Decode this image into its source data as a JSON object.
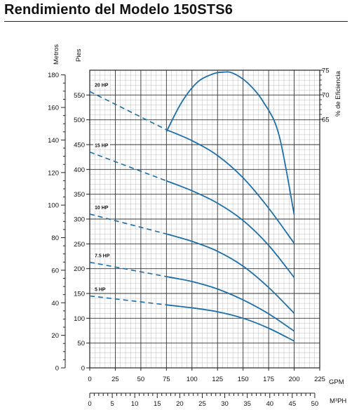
{
  "page_title": "Rendimiento del Modelo 150STS6",
  "chart_data": {
    "type": "line",
    "title": "Rendimiento del Modelo 150STS6",
    "x_label_gpm": "GPM",
    "x_label_m3ph": "M³PH",
    "y_label_metros": "Metros",
    "y_label_pies": "Pies",
    "y_label_eff": "% de Eficiencia",
    "gpm_ticks": [
      "0",
      "25",
      "50",
      "75",
      "100",
      "125",
      "150",
      "175",
      "200",
      "225"
    ],
    "m3ph_ticks": [
      "0",
      "5",
      "10",
      "15",
      "20",
      "25",
      "30",
      "35",
      "40",
      "45",
      "50"
    ],
    "metros_ticks": [
      "0",
      "20",
      "40",
      "60",
      "80",
      "100",
      "120",
      "140",
      "160",
      "180"
    ],
    "pies_ticks": [
      "0",
      "50",
      "100",
      "150",
      "200",
      "250",
      "300",
      "350",
      "400",
      "450",
      "500",
      "550"
    ],
    "eff_ticks": [
      "65",
      "70",
      "75"
    ],
    "xlim_gpm": [
      0,
      225
    ],
    "ylim_feet": [
      0,
      600
    ],
    "eff_range": [
      65,
      75
    ],
    "grid": true,
    "series": [
      {
        "name": "20 HP",
        "dashed": [
          [
            0,
            557
          ],
          [
            75,
            480
          ]
        ],
        "solid": [
          [
            75,
            480
          ],
          [
            100,
            458
          ],
          [
            125,
            428
          ],
          [
            150,
            383
          ],
          [
            175,
            322
          ],
          [
            200,
            251
          ]
        ]
      },
      {
        "name": "15 HP",
        "dashed": [
          [
            0,
            435
          ],
          [
            75,
            377
          ]
        ],
        "solid": [
          [
            75,
            377
          ],
          [
            100,
            357
          ],
          [
            125,
            332
          ],
          [
            150,
            297
          ],
          [
            175,
            247
          ],
          [
            200,
            182
          ]
        ]
      },
      {
        "name": "10 HP",
        "dashed": [
          [
            0,
            310
          ],
          [
            75,
            270
          ]
        ],
        "solid": [
          [
            75,
            270
          ],
          [
            100,
            255
          ],
          [
            125,
            235
          ],
          [
            150,
            205
          ],
          [
            175,
            162
          ],
          [
            200,
            110
          ]
        ]
      },
      {
        "name": "7.5 HP",
        "dashed": [
          [
            0,
            213
          ],
          [
            75,
            184
          ]
        ],
        "solid": [
          [
            75,
            184
          ],
          [
            100,
            174
          ],
          [
            125,
            159
          ],
          [
            150,
            137
          ],
          [
            175,
            109
          ],
          [
            200,
            74
          ]
        ]
      },
      {
        "name": "5 HP",
        "dashed": [
          [
            0,
            145
          ],
          [
            75,
            127
          ]
        ],
        "solid": [
          [
            75,
            127
          ],
          [
            100,
            121
          ],
          [
            125,
            113
          ],
          [
            150,
            100
          ],
          [
            175,
            80
          ],
          [
            200,
            54
          ]
        ]
      }
    ],
    "efficiency_curve": [
      [
        75,
        62.5
      ],
      [
        90,
        68.5
      ],
      [
        105,
        72.5
      ],
      [
        120,
        74.2
      ],
      [
        130,
        74.6
      ],
      [
        140,
        74.4
      ],
      [
        155,
        72.3
      ],
      [
        170,
        68.5
      ],
      [
        185,
        61.9
      ],
      [
        200,
        45.6
      ]
    ]
  }
}
